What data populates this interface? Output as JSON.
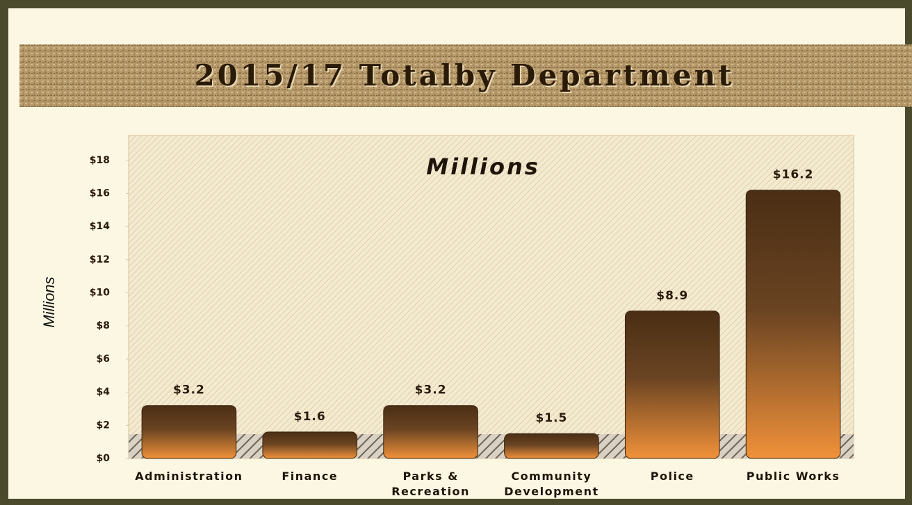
{
  "chart_data": {
    "type": "bar",
    "title": "2015/17 Totalby Department",
    "subtitle": "Millions",
    "y_label": "Millions",
    "categories": [
      "Administration",
      "Finance",
      "Parks &\nRecreation",
      "Community\nDevelopment",
      "Police",
      "Public Works"
    ],
    "values": [
      3.2,
      1.6,
      3.2,
      1.5,
      8.9,
      16.2
    ],
    "value_labels": [
      "$3.2",
      "$1.6",
      "$3.2",
      "$1.5",
      "$8.9",
      "$16.2"
    ],
    "color": "#f0913a",
    "ylim": [
      0,
      19.5
    ],
    "yticks": [
      {
        "value": 0,
        "label": "$0"
      },
      {
        "value": 2,
        "label": "$2"
      },
      {
        "value": 4,
        "label": "$4"
      },
      {
        "value": 6,
        "label": "$6"
      },
      {
        "value": 8,
        "label": "$8"
      },
      {
        "value": 10,
        "label": "$10"
      },
      {
        "value": 12,
        "label": "$12"
      },
      {
        "value": 14,
        "label": "$14"
      },
      {
        "value": 16,
        "label": "$16"
      },
      {
        "value": 18,
        "label": "$18"
      }
    ],
    "grid": false
  }
}
